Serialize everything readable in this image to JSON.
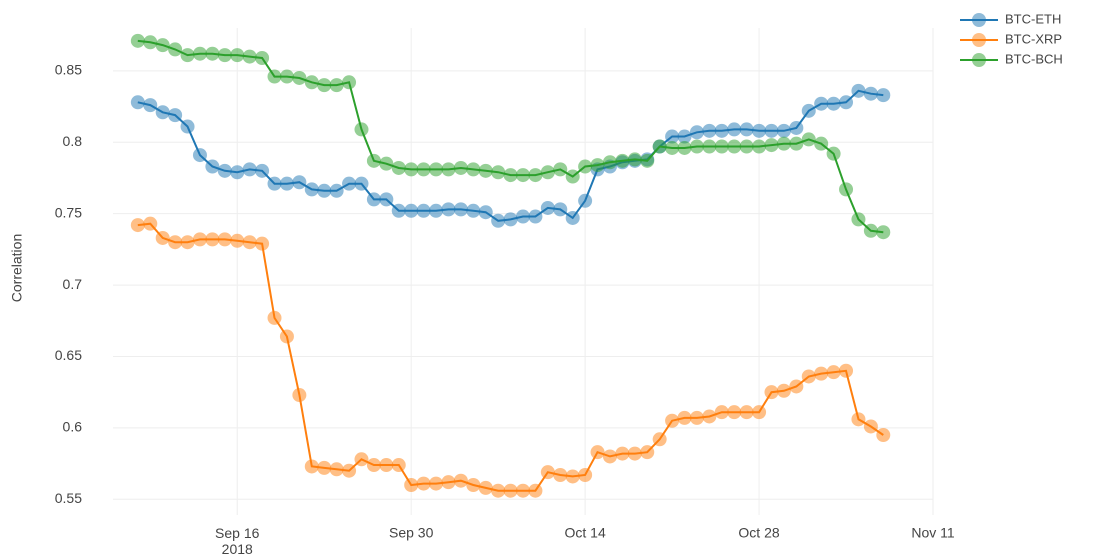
{
  "chart_data": {
    "type": "line",
    "y_axis_label": "Correlation",
    "x": [
      "2018-09-08",
      "2018-09-09",
      "2018-09-10",
      "2018-09-11",
      "2018-09-12",
      "2018-09-13",
      "2018-09-14",
      "2018-09-15",
      "2018-09-16",
      "2018-09-17",
      "2018-09-18",
      "2018-09-19",
      "2018-09-20",
      "2018-09-21",
      "2018-09-22",
      "2018-09-23",
      "2018-09-24",
      "2018-09-25",
      "2018-09-26",
      "2018-09-27",
      "2018-09-28",
      "2018-09-29",
      "2018-09-30",
      "2018-10-01",
      "2018-10-02",
      "2018-10-03",
      "2018-10-04",
      "2018-10-05",
      "2018-10-06",
      "2018-10-07",
      "2018-10-08",
      "2018-10-09",
      "2018-10-10",
      "2018-10-11",
      "2018-10-12",
      "2018-10-13",
      "2018-10-14",
      "2018-10-15",
      "2018-10-16",
      "2018-10-17",
      "2018-10-18",
      "2018-10-19",
      "2018-10-20",
      "2018-10-21",
      "2018-10-22",
      "2018-10-23",
      "2018-10-24",
      "2018-10-25",
      "2018-10-26",
      "2018-10-27",
      "2018-10-28",
      "2018-10-29",
      "2018-10-30",
      "2018-10-31",
      "2018-11-01",
      "2018-11-02",
      "2018-11-03",
      "2018-11-04",
      "2018-11-05",
      "2018-11-06",
      "2018-11-07"
    ],
    "series": [
      {
        "name": "BTC-ETH",
        "color": "#1f77b4",
        "values": [
          0.828,
          0.826,
          0.821,
          0.819,
          0.811,
          0.791,
          0.783,
          0.78,
          0.779,
          0.781,
          0.78,
          0.771,
          0.771,
          0.772,
          0.767,
          0.766,
          0.766,
          0.771,
          0.771,
          0.76,
          0.76,
          0.752,
          0.752,
          0.752,
          0.752,
          0.753,
          0.753,
          0.752,
          0.751,
          0.745,
          0.746,
          0.748,
          0.748,
          0.754,
          0.753,
          0.747,
          0.759,
          0.781,
          0.783,
          0.786,
          0.787,
          0.788,
          0.797,
          0.804,
          0.804,
          0.807,
          0.808,
          0.808,
          0.809,
          0.809,
          0.808,
          0.808,
          0.808,
          0.81,
          0.822,
          0.827,
          0.827,
          0.828,
          0.836,
          0.834,
          0.833
        ]
      },
      {
        "name": "BTC-XRP",
        "color": "#ff7f0e",
        "values": [
          0.742,
          0.743,
          0.733,
          0.73,
          0.73,
          0.732,
          0.732,
          0.732,
          0.731,
          0.73,
          0.729,
          0.677,
          0.664,
          0.623,
          0.573,
          0.572,
          0.571,
          0.57,
          0.578,
          0.574,
          0.574,
          0.574,
          0.56,
          0.561,
          0.561,
          0.562,
          0.563,
          0.56,
          0.558,
          0.556,
          0.556,
          0.556,
          0.556,
          0.569,
          0.567,
          0.566,
          0.567,
          0.583,
          0.58,
          0.582,
          0.582,
          0.583,
          0.592,
          0.605,
          0.607,
          0.607,
          0.608,
          0.611,
          0.611,
          0.611,
          0.611,
          0.625,
          0.626,
          0.629,
          0.636,
          0.638,
          0.639,
          0.64,
          0.606,
          0.601,
          0.595
        ]
      },
      {
        "name": "BTC-BCH",
        "color": "#2ca02c",
        "values": [
          0.871,
          0.87,
          0.868,
          0.865,
          0.861,
          0.862,
          0.862,
          0.861,
          0.861,
          0.86,
          0.859,
          0.846,
          0.846,
          0.845,
          0.842,
          0.84,
          0.84,
          0.842,
          0.809,
          0.787,
          0.785,
          0.782,
          0.781,
          0.781,
          0.781,
          0.781,
          0.782,
          0.781,
          0.78,
          0.779,
          0.777,
          0.777,
          0.777,
          0.779,
          0.781,
          0.776,
          0.783,
          0.784,
          0.786,
          0.787,
          0.788,
          0.787,
          0.797,
          0.796,
          0.796,
          0.797,
          0.797,
          0.797,
          0.797,
          0.797,
          0.797,
          0.798,
          0.799,
          0.799,
          0.802,
          0.799,
          0.792,
          0.767,
          0.746,
          0.738,
          0.737
        ]
      }
    ],
    "xlim": [
      "2018-09-06",
      "2018-11-11"
    ],
    "xticks": [
      {
        "value": "2018-09-16",
        "label": "Sep 16\n2018"
      },
      {
        "value": "2018-09-30",
        "label": "Sep 30"
      },
      {
        "value": "2018-10-14",
        "label": "Oct 14"
      },
      {
        "value": "2018-10-28",
        "label": "Oct 28"
      },
      {
        "value": "2018-11-11",
        "label": "Nov 11"
      }
    ],
    "ylim": [
      0.539,
      0.88
    ],
    "yticks": [
      0.55,
      0.6,
      0.65,
      0.7,
      0.75,
      0.8,
      0.85
    ],
    "grid": true,
    "legend": "top-right"
  }
}
